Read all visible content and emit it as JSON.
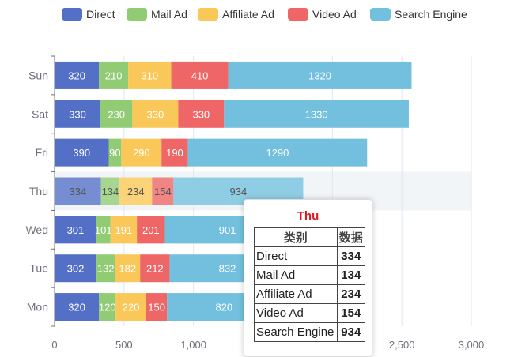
{
  "chart_data": {
    "type": "bar",
    "orientation": "horizontal",
    "stacked": true,
    "categories": [
      "Mon",
      "Tue",
      "Wed",
      "Thu",
      "Fri",
      "Sat",
      "Sun"
    ],
    "series": [
      {
        "name": "Direct",
        "color": "#5470c6",
        "values": [
          320,
          302,
          301,
          334,
          390,
          330,
          320
        ]
      },
      {
        "name": "Mail Ad",
        "color": "#91cc75",
        "values": [
          120,
          132,
          101,
          134,
          90,
          230,
          210
        ]
      },
      {
        "name": "Affiliate Ad",
        "color": "#fac858",
        "values": [
          220,
          182,
          191,
          234,
          290,
          330,
          310
        ]
      },
      {
        "name": "Video Ad",
        "color": "#ee6666",
        "values": [
          150,
          212,
          201,
          154,
          190,
          330,
          410
        ]
      },
      {
        "name": "Search Engine",
        "color": "#73c0de",
        "values": [
          820,
          832,
          901,
          934,
          1290,
          1330,
          1320
        ]
      }
    ],
    "xlim": [
      0,
      3000
    ],
    "xticks": [
      "0",
      "500",
      "1,000",
      "1,500",
      "2,000",
      "2,500",
      "3,000"
    ],
    "xtick_values": [
      0,
      500,
      1000,
      1500,
      2000,
      2500,
      3000
    ],
    "highlighted_category": "Thu",
    "legend_position": "top-center",
    "grid": "vertical"
  },
  "tooltip": {
    "title": "Thu",
    "col_name": "类别",
    "col_value": "数据",
    "rows": [
      {
        "name": "Direct",
        "value": "334"
      },
      {
        "name": "Mail Ad",
        "value": "134"
      },
      {
        "name": "Affiliate Ad",
        "value": "234"
      },
      {
        "name": "Video Ad",
        "value": "154"
      },
      {
        "name": "Search Engine",
        "value": "934"
      }
    ]
  }
}
